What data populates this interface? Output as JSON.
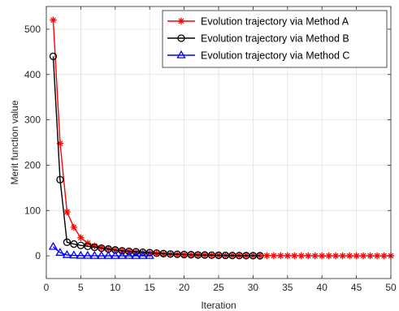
{
  "chart_data": {
    "type": "line",
    "xlabel": "Iteration",
    "ylabel": "Merit function value",
    "xlim": [
      0,
      50
    ],
    "ylim": [
      -50,
      550
    ],
    "xticks": [
      0,
      5,
      10,
      15,
      20,
      25,
      30,
      35,
      40,
      45,
      50
    ],
    "yticks": [
      0,
      100,
      200,
      300,
      400,
      500
    ],
    "grid": true,
    "legend_position": "top-right",
    "series": [
      {
        "name": "Evolution trajectory via Method A",
        "color": "#ff0000",
        "marker": "asterisk",
        "x": [
          1,
          2,
          3,
          4,
          5,
          6,
          7,
          8,
          9,
          10,
          11,
          12,
          13,
          14,
          15,
          16,
          17,
          18,
          19,
          20,
          21,
          22,
          23,
          24,
          25,
          26,
          27,
          28,
          29,
          30,
          31,
          32,
          33,
          34,
          35,
          36,
          37,
          38,
          39,
          40,
          41,
          42,
          43,
          44,
          45,
          46,
          47,
          48,
          49,
          50
        ],
        "values": [
          520,
          248,
          97,
          63,
          40,
          28,
          22,
          18,
          15,
          13,
          11,
          10,
          8,
          7,
          6,
          5,
          4,
          3.5,
          3,
          2.5,
          2,
          1.8,
          1.6,
          1.4,
          1.2,
          1,
          0.9,
          0.8,
          0.7,
          0.6,
          0.5,
          0.4,
          0.4,
          0.3,
          0.3,
          0.2,
          0.2,
          0.2,
          0.1,
          0.1,
          0.1,
          0.1,
          0.1,
          0.1,
          0.1,
          0.1,
          0.1,
          0.1,
          0.1,
          0.1
        ]
      },
      {
        "name": "Evolution trajectory via Method B",
        "color": "#000000",
        "marker": "circle",
        "x": [
          1,
          2,
          3,
          4,
          5,
          6,
          7,
          8,
          9,
          10,
          11,
          12,
          13,
          14,
          15,
          16,
          17,
          18,
          19,
          20,
          21,
          22,
          23,
          24,
          25,
          26,
          27,
          28,
          29,
          30,
          31
        ],
        "values": [
          440,
          168,
          30,
          26,
          23,
          21,
          19,
          17,
          15,
          13,
          11,
          10,
          9,
          8,
          7,
          6,
          5,
          4,
          3.5,
          3,
          2.5,
          2,
          1.8,
          1.5,
          1.2,
          1,
          0.8,
          0.6,
          0.5,
          0.4,
          0.3
        ]
      },
      {
        "name": "Evolution trajectory via Method C",
        "color": "#0000ff",
        "marker": "triangle",
        "x": [
          1,
          2,
          3,
          4,
          5,
          6,
          7,
          8,
          9,
          10,
          11,
          12,
          13,
          14,
          15
        ],
        "values": [
          20,
          7,
          2,
          1,
          0.5,
          0.3,
          0.2,
          0.1,
          0.1,
          0.1,
          0.1,
          0.1,
          0.1,
          0.1,
          0.1
        ]
      }
    ]
  }
}
